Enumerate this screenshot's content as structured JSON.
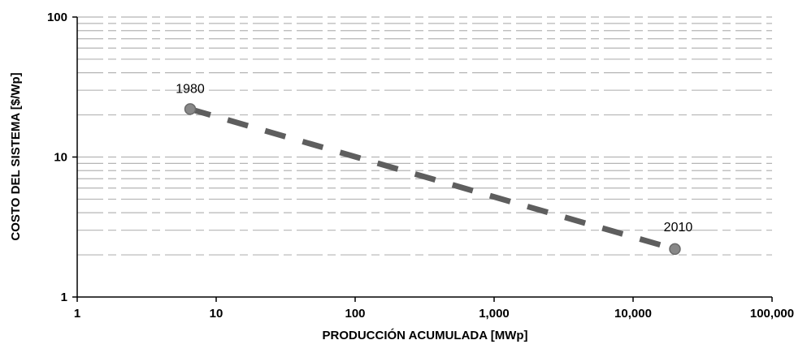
{
  "colors": {
    "gridline": "#b5b5b5",
    "axis": "#000000",
    "trend_line": "#5e5e5e",
    "marker": "#888888",
    "marker_stroke": "#6b6b6b"
  },
  "chart_data": {
    "type": "line",
    "x_scale": "log",
    "y_scale": "log",
    "xlim": [
      1,
      100000
    ],
    "ylim": [
      1,
      100
    ],
    "xlabel": "PRODUCCIÓN ACUMULADA [MWp]",
    "ylabel": "COSTO DEL SISTEMA [$/Wp]",
    "x_ticks": [
      1,
      10,
      100,
      1000,
      10000,
      100000
    ],
    "x_tick_labels": [
      "1",
      "10",
      "100",
      "1,000",
      "10,000",
      "100,000"
    ],
    "y_ticks": [
      1,
      10,
      100
    ],
    "y_tick_labels": [
      "1",
      "10",
      "100"
    ],
    "grid": "horizontal minor dashed",
    "line_style": "dashed",
    "series": [
      {
        "points": [
          {
            "x": 6.5,
            "y": 22,
            "label": "1980"
          },
          {
            "x": 20000,
            "y": 2.2,
            "label": "2010"
          }
        ]
      }
    ],
    "annotations": [
      "1980",
      "2010"
    ]
  }
}
